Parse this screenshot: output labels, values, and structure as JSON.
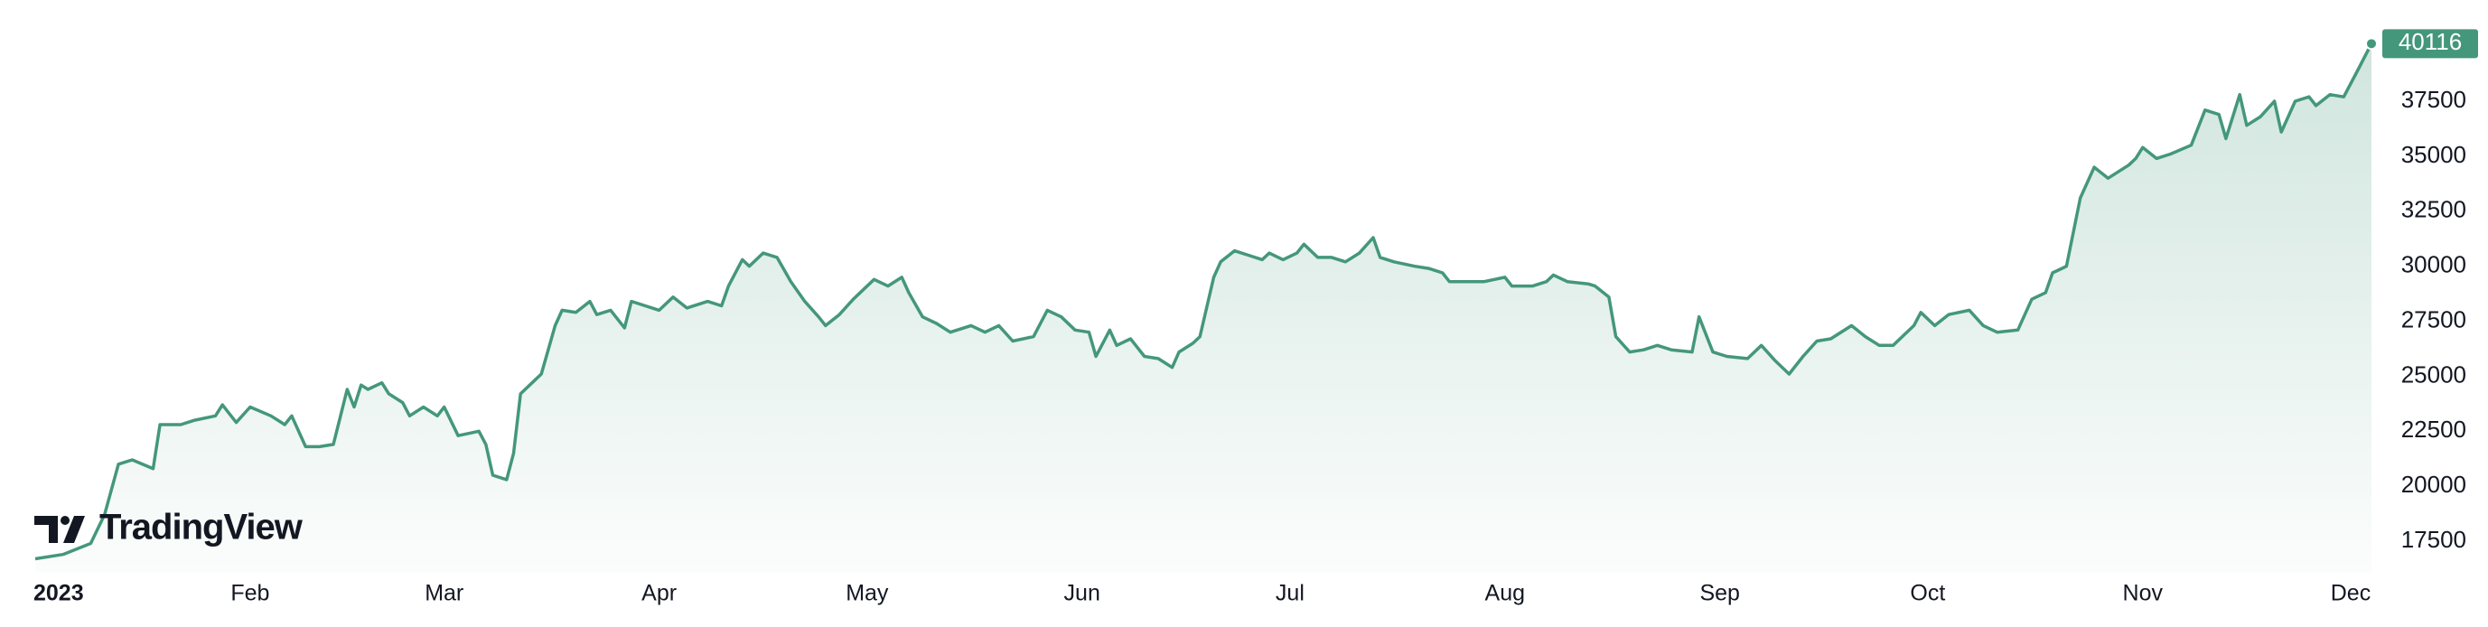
{
  "chart_data": {
    "type": "area",
    "watermark": "TradingView",
    "color": "#44977b",
    "x": [
      0,
      4,
      8,
      10,
      12,
      14,
      17,
      18,
      21,
      23,
      26,
      27,
      29,
      31,
      34,
      36,
      37,
      39,
      41,
      43,
      45,
      46,
      47,
      48,
      50,
      51,
      53,
      54,
      56,
      58,
      59,
      61,
      64,
      65,
      66,
      68,
      69,
      70,
      72,
      73,
      75,
      76,
      78,
      80,
      81,
      83,
      85,
      86,
      88,
      90,
      92,
      94,
      97,
      99,
      100,
      102,
      103,
      105,
      107,
      109,
      111,
      113,
      114,
      116,
      118,
      121,
      123,
      125,
      126,
      128,
      130,
      132,
      135,
      137,
      139,
      141,
      144,
      146,
      148,
      150,
      152,
      153,
      155,
      156,
      158,
      160,
      162,
      164,
      165,
      167,
      168,
      170,
      171,
      173,
      175,
      177,
      178,
      180,
      182,
      183,
      185,
      187,
      189,
      191,
      193,
      194,
      196,
      199,
      201,
      203,
      204,
      207,
      209,
      212,
      213,
      216,
      218,
      219,
      221,
      224,
      225,
      227,
      228,
      230,
      232,
      234,
      236,
      239,
      240,
      242,
      244,
      247,
      249,
      251,
      253,
      255,
      257,
      259,
      262,
      264,
      266,
      268,
      271,
      272,
      274,
      276,
      279,
      281,
      283,
      286,
      288,
      290,
      291,
      293,
      295,
      297,
      299,
      302,
      303,
      304,
      306,
      308,
      311,
      313,
      315,
      316,
      318,
      319,
      321,
      323,
      324,
      326,
      328,
      329,
      331,
      333,
      335,
      337
    ],
    "values": [
      16700,
      16900,
      17400,
      18700,
      21000,
      21200,
      20800,
      22800,
      22800,
      23000,
      23200,
      23700,
      22900,
      23600,
      23200,
      22800,
      23200,
      21800,
      21800,
      21900,
      24400,
      23600,
      24600,
      24400,
      24700,
      24200,
      23800,
      23200,
      23600,
      23200,
      23600,
      22300,
      22500,
      21900,
      20500,
      20300,
      21500,
      24200,
      24800,
      25100,
      27300,
      28000,
      27900,
      28400,
      27800,
      28000,
      27200,
      28400,
      28200,
      28000,
      28600,
      28100,
      28400,
      28200,
      29100,
      30300,
      30000,
      30600,
      30400,
      29300,
      28400,
      27700,
      27300,
      27800,
      28500,
      29400,
      29100,
      29500,
      28800,
      27700,
      27400,
      27000,
      27300,
      27000,
      27300,
      26600,
      26800,
      28000,
      27700,
      27100,
      27000,
      25900,
      27100,
      26400,
      26700,
      25900,
      25800,
      25400,
      26100,
      26500,
      26800,
      29500,
      30200,
      30700,
      30500,
      30300,
      30600,
      30300,
      30600,
      31000,
      30400,
      30400,
      30200,
      30600,
      31300,
      30400,
      30200,
      30000,
      29900,
      29700,
      29300,
      29300,
      29300,
      29500,
      29100,
      29100,
      29300,
      29600,
      29300,
      29200,
      29100,
      28600,
      26800,
      26100,
      26200,
      26400,
      26200,
      26100,
      27700,
      26100,
      25900,
      25800,
      26400,
      25700,
      25100,
      25900,
      26600,
      26700,
      27300,
      26800,
      26400,
      26400,
      27300,
      27900,
      27300,
      27800,
      28000,
      27300,
      27000,
      27100,
      28500,
      28800,
      29700,
      30000,
      33100,
      34500,
      34000,
      34600,
      34900,
      35400,
      34900,
      35100,
      35500,
      37100,
      36900,
      35800,
      37800,
      36400,
      36800,
      37500,
      36100,
      37500,
      37700,
      37300,
      37800,
      37700,
      38900,
      40116
    ],
    "xlim": [
      0,
      337
    ],
    "ylim": [
      16640,
      41280
    ],
    "xticks": [
      {
        "value": 0,
        "label": "2023"
      },
      {
        "value": 31,
        "label": "Feb"
      },
      {
        "value": 59,
        "label": "Mar"
      },
      {
        "value": 90,
        "label": "Apr"
      },
      {
        "value": 120,
        "label": "May"
      },
      {
        "value": 151,
        "label": "Jun"
      },
      {
        "value": 181,
        "label": "Jul"
      },
      {
        "value": 212,
        "label": "Aug"
      },
      {
        "value": 243,
        "label": "Sep"
      },
      {
        "value": 273,
        "label": "Oct"
      },
      {
        "value": 304,
        "label": "Nov"
      },
      {
        "value": 334,
        "label": "Dec"
      }
    ],
    "yticks": [
      17500,
      20000,
      22500,
      25000,
      27500,
      30000,
      32500,
      35000,
      37500
    ]
  }
}
